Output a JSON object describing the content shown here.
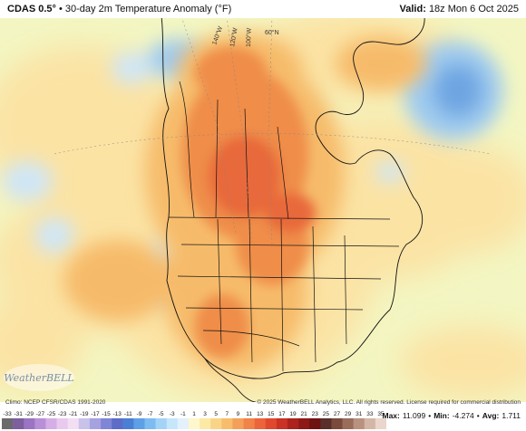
{
  "header": {
    "model": "CDAS 0.5°",
    "separator": "•",
    "product": "30-day 2m Temperature Anomaly (°F)",
    "valid_label": "Valid:",
    "valid_time": "18z Mon 6 Oct 2025"
  },
  "map_labels": {
    "lon_140": "140°W",
    "lon_120": "120°W",
    "lon_100": "100°W",
    "lat_60": "60°N"
  },
  "logo_text": "WeatherBELL",
  "credits": {
    "left": "Climo: NCEP CFSR/CDAS 1991-2020",
    "right": "© 2025 WeatherBELL Analytics, LLC. All rights reserved. License required for commercial distribution"
  },
  "colorbar": {
    "ticks": [
      "-33",
      "-31",
      "-29",
      "-27",
      "-25",
      "-23",
      "-21",
      "-19",
      "-17",
      "-15",
      "-13",
      "-11",
      "-9",
      "-7",
      "-5",
      "-3",
      "-1",
      "1",
      "3",
      "5",
      "7",
      "9",
      "11",
      "13",
      "15",
      "17",
      "19",
      "21",
      "23",
      "25",
      "27",
      "29",
      "31",
      "33",
      "35"
    ],
    "colors": [
      "#6b6b6b",
      "#7d5fa0",
      "#9b74c4",
      "#b98fd8",
      "#d6aee6",
      "#e9c9ee",
      "#f2dff4",
      "#c9c2ea",
      "#a6a2e0",
      "#7f86d6",
      "#5c6cc8",
      "#4b7fd6",
      "#5ea0e6",
      "#7dbcf0",
      "#a3d3f6",
      "#c6e6fa",
      "#e2f1fb",
      "#fff7cc",
      "#fce9a6",
      "#fad486",
      "#f8bd6c",
      "#f5a05a",
      "#f18348",
      "#ec653a",
      "#e0492e",
      "#c93224",
      "#ad221c",
      "#8e1916",
      "#6e1311",
      "#5a2e2a",
      "#7a4a3c",
      "#9a6c5a",
      "#b8917f",
      "#d4b6a6",
      "#ead6cc"
    ]
  },
  "stats": {
    "max_label": "Max:",
    "max": "11.099",
    "min_label": "Min:",
    "min": "-4.274",
    "avg_label": "Avg:",
    "avg": "1.711",
    "sep": "•"
  },
  "colors": {
    "ocean_base": "#f3f6c2",
    "warm_light": "#fbe3a4",
    "warm_mid": "#f6bb6b",
    "warm_strong": "#ef8d49",
    "warm_peak": "#e8693a",
    "cool_light": "#cfe6f7",
    "cool_mid": "#9fcbef",
    "cool_strong": "#6ea6e2",
    "border": "#111111"
  }
}
